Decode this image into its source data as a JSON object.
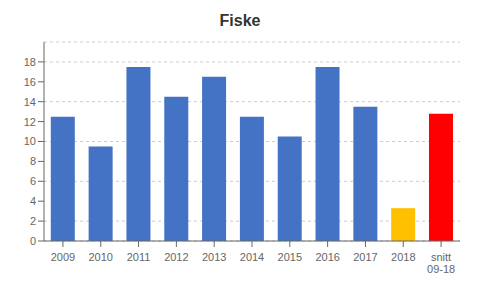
{
  "chart_data": {
    "type": "bar",
    "title": "Fiske",
    "categories": [
      "2009",
      "2010",
      "2011",
      "2012",
      "2013",
      "2014",
      "2015",
      "2016",
      "2017",
      "2018",
      "snitt\n09-18"
    ],
    "values": [
      12.5,
      9.5,
      17.5,
      14.5,
      16.5,
      12.5,
      10.5,
      17.5,
      13.5,
      3.3,
      12.8
    ],
    "colors": [
      "#4472C4",
      "#4472C4",
      "#4472C4",
      "#4472C4",
      "#4472C4",
      "#4472C4",
      "#4472C4",
      "#4472C4",
      "#4472C4",
      "#FFC000",
      "#FF0000"
    ],
    "ylim": [
      0,
      20
    ],
    "yticks": [
      0,
      2,
      4,
      6,
      8,
      10,
      12,
      14,
      16,
      18
    ],
    "grid": true
  }
}
